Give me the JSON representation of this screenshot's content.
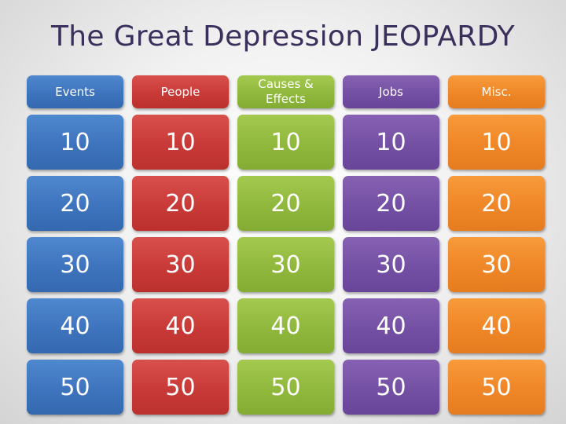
{
  "title": "The Great Depression JEOPARDY",
  "categories": [
    "Events",
    "People",
    "Causes & Effects",
    "Jobs",
    "Misc."
  ],
  "point_values": [
    "10",
    "20",
    "30",
    "40",
    "50"
  ],
  "colors": {
    "title": "#3b2f5c",
    "events": "#3e74bd",
    "people": "#c83a37",
    "causes_effects": "#90b83d",
    "jobs": "#7450a4",
    "misc": "#ef8627"
  }
}
